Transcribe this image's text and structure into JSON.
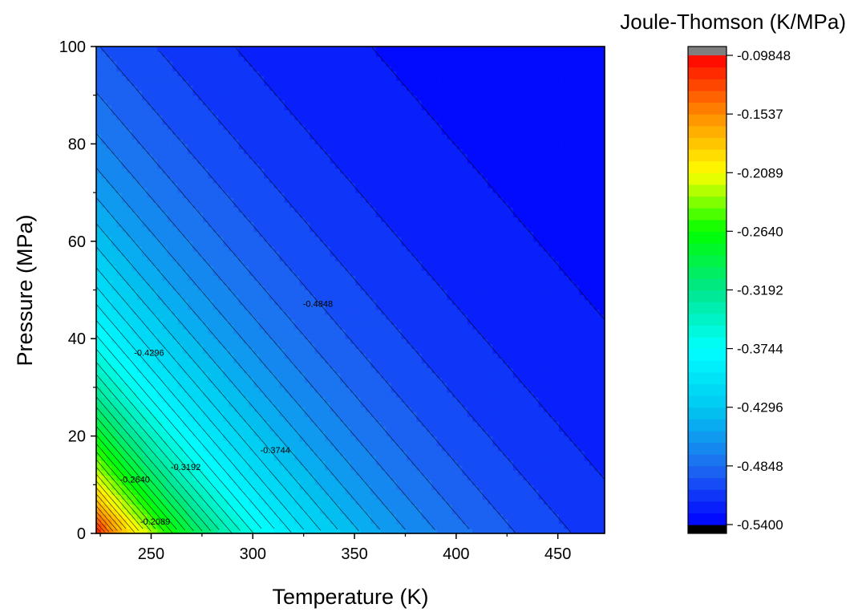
{
  "chart_data": {
    "type": "heatmap",
    "subtype": "filled-contour",
    "title": "",
    "xlabel": "Temperature (K)",
    "ylabel": "Pressure (MPa)",
    "xlim": [
      223,
      473
    ],
    "ylim": [
      0,
      100
    ],
    "x_ticks": [
      250,
      300,
      350,
      400,
      450
    ],
    "y_ticks": [
      0,
      20,
      40,
      60,
      80,
      100
    ],
    "grid": false,
    "colorbar": {
      "title": "Joule-Thomson (K/MPa)",
      "position": "right",
      "min": -0.54,
      "max": -0.09848,
      "tick_values": [
        -0.09848,
        -0.1537,
        -0.2089,
        -0.264,
        -0.3192,
        -0.3744,
        -0.4296,
        -0.4848,
        -0.54
      ],
      "tick_labels": [
        "-0.09848",
        "-0.1537",
        "-0.2089",
        "-0.2640",
        "-0.3192",
        "-0.3744",
        "-0.4296",
        "-0.4848",
        "-0.5400"
      ],
      "colors_low_to_high": [
        "#000000",
        "#0000ff",
        "#1e6cf0",
        "#00c8f0",
        "#00ffff",
        "#00e68c",
        "#00ff00",
        "#ffff00",
        "#ff8c00",
        "#ff0000",
        "#7f7f7f"
      ],
      "levels": 40
    },
    "contour_labels": [
      {
        "text": "-0.4848",
        "x": 332,
        "y": 46.5
      },
      {
        "text": "-0.4296",
        "x": 249,
        "y": 36.5
      },
      {
        "text": "-0.3744",
        "x": 311,
        "y": 16.5
      },
      {
        "text": "-0.3192",
        "x": 267,
        "y": 13.0
      },
      {
        "text": "-0.2640",
        "x": 242,
        "y": 10.5
      },
      {
        "text": "-0.2089",
        "x": 252,
        "y": 1.8
      }
    ]
  }
}
